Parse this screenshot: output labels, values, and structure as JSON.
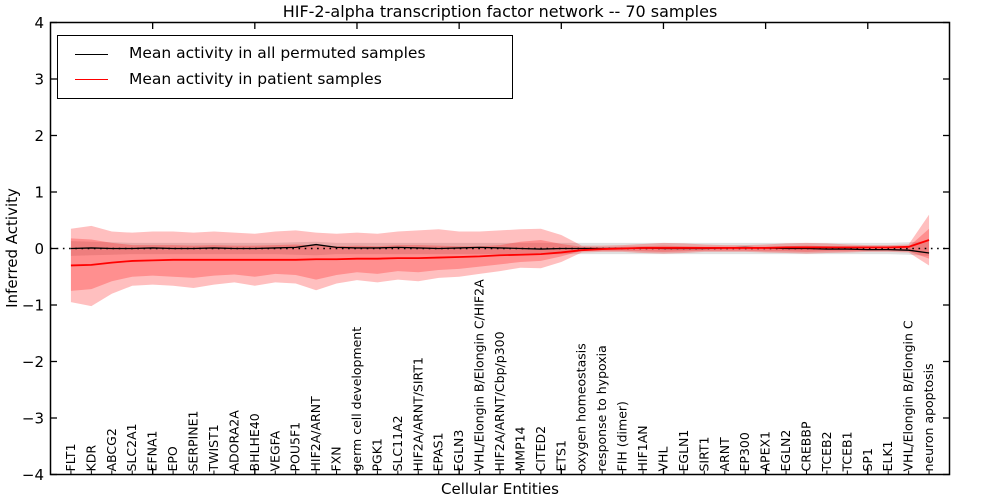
{
  "figure": {
    "title": "HIF-2-alpha transcription factor network -- 70 samples",
    "xlabel": "Cellular Entities",
    "ylabel": "Inferred Activity"
  },
  "legend": {
    "items": [
      {
        "label": "Mean activity in all permuted samples",
        "color": "#000000"
      },
      {
        "label": "Mean activity in patient samples",
        "color": "#ff0000"
      }
    ]
  },
  "chart_data": {
    "type": "line",
    "title": "HIF-2-alpha transcription factor network -- 70 samples",
    "xlabel": "Cellular Entities",
    "ylabel": "Inferred Activity",
    "ylim": [
      -4,
      4
    ],
    "xlim_units": [
      0,
      44
    ],
    "grid": false,
    "legend_position": "upper left",
    "zero_line": {
      "style": "dotted",
      "color": "#000000",
      "y": 0
    },
    "yticks": [
      {
        "v": -4,
        "label": "−4"
      },
      {
        "v": -3,
        "label": "−3"
      },
      {
        "v": -2,
        "label": "−2"
      },
      {
        "v": -1,
        "label": "−1"
      },
      {
        "v": 0,
        "label": "0"
      },
      {
        "v": 1,
        "label": "1"
      },
      {
        "v": 2,
        "label": "2"
      },
      {
        "v": 3,
        "label": "3"
      },
      {
        "v": 4,
        "label": "4"
      }
    ],
    "x_major_tick_units": [
      5,
      10,
      15,
      20,
      25,
      30,
      35,
      40
    ],
    "categories": [
      "FLT1",
      "KDR",
      "ABCG2",
      "SLC2A1",
      "EFNA1",
      "EPO",
      "SERPINE1",
      "TWIST1",
      "ADORA2A",
      "BHLHE40",
      "VEGFA",
      "POU5F1",
      "HIF2A/ARNT",
      "FXN",
      "germ cell development",
      "PGK1",
      "SLC11A2",
      "HIF2A/ARNT/SIRT1",
      "EPAS1",
      "EGLN3",
      "VHL/Elongin B/Elongin C/HIF2A",
      "HIF2A/ARNT/Cbp/p300",
      "MMP14",
      "CITED2",
      "ETS1",
      "oxygen homeostasis",
      "response to hypoxia",
      "FIH (dimer)",
      "HIF1AN",
      "VHL",
      "EGLN1",
      "SIRT1",
      "ARNT",
      "EP300",
      "APEX1",
      "EGLN2",
      "CREBBP",
      "TCEB2",
      "TCEB1",
      "SP1",
      "ELK1",
      "VHL/Elongin B/Elongin C",
      "neuron apoptosis"
    ],
    "series": [
      {
        "name": "Mean activity in all permuted samples",
        "color": "#000000",
        "width": 1.3,
        "values": [
          0.0,
          0.01,
          0.0,
          0.0,
          0.01,
          0.0,
          0.0,
          0.01,
          0.0,
          0.0,
          0.01,
          0.02,
          0.07,
          0.02,
          0.01,
          0.01,
          0.02,
          0.01,
          0.0,
          0.01,
          0.02,
          0.01,
          0.0,
          -0.01,
          0.0,
          0.0,
          0.0,
          0.0,
          0.01,
          0.0,
          0.0,
          0.0,
          0.01,
          0.02,
          0.01,
          0.0,
          0.0,
          -0.01,
          -0.01,
          -0.02,
          -0.02,
          -0.03,
          -0.08
        ]
      },
      {
        "name": "Mean activity in patient samples",
        "color": "#ff0000",
        "width": 1.8,
        "values": [
          -0.3,
          -0.29,
          -0.25,
          -0.22,
          -0.21,
          -0.2,
          -0.2,
          -0.2,
          -0.2,
          -0.2,
          -0.2,
          -0.2,
          -0.19,
          -0.19,
          -0.18,
          -0.18,
          -0.17,
          -0.17,
          -0.16,
          -0.15,
          -0.14,
          -0.12,
          -0.11,
          -0.1,
          -0.07,
          -0.03,
          -0.01,
          0.0,
          0.01,
          0.01,
          0.01,
          0.01,
          0.01,
          0.01,
          0.01,
          0.02,
          0.02,
          0.02,
          0.02,
          0.02,
          0.02,
          0.03,
          0.15
        ]
      }
    ],
    "bands": [
      {
        "name": "permuted-std-band",
        "color": "#999999",
        "opacity": 0.3,
        "top": [
          0.13,
          0.12,
          0.11,
          0.1,
          0.1,
          0.1,
          0.1,
          0.1,
          0.1,
          0.1,
          0.1,
          0.11,
          0.12,
          0.1,
          0.1,
          0.1,
          0.1,
          0.1,
          0.1,
          0.1,
          0.1,
          0.1,
          0.1,
          0.1,
          0.1,
          0.1,
          0.1,
          0.1,
          0.1,
          0.1,
          0.1,
          0.1,
          0.1,
          0.1,
          0.1,
          0.1,
          0.1,
          0.1,
          0.1,
          0.1,
          0.1,
          0.11,
          0.13
        ],
        "bottom": [
          -0.13,
          -0.12,
          -0.11,
          -0.1,
          -0.1,
          -0.1,
          -0.1,
          -0.1,
          -0.1,
          -0.1,
          -0.1,
          -0.11,
          -0.12,
          -0.1,
          -0.1,
          -0.1,
          -0.1,
          -0.1,
          -0.1,
          -0.1,
          -0.1,
          -0.1,
          -0.1,
          -0.1,
          -0.1,
          -0.1,
          -0.1,
          -0.1,
          -0.1,
          -0.1,
          -0.1,
          -0.1,
          -0.1,
          -0.1,
          -0.1,
          -0.1,
          -0.1,
          -0.1,
          -0.1,
          -0.1,
          -0.1,
          -0.11,
          -0.13
        ]
      },
      {
        "name": "patient-outer-band",
        "color": "#ff0000",
        "opacity": 0.25,
        "top": [
          0.35,
          0.4,
          0.3,
          0.28,
          0.3,
          0.3,
          0.28,
          0.3,
          0.28,
          0.26,
          0.3,
          0.32,
          0.28,
          0.26,
          0.28,
          0.26,
          0.3,
          0.32,
          0.34,
          0.3,
          0.3,
          0.32,
          0.34,
          0.35,
          0.24,
          0.05,
          0.05,
          0.06,
          0.08,
          0.1,
          0.09,
          0.07,
          0.06,
          0.06,
          0.07,
          0.09,
          0.1,
          0.09,
          0.07,
          0.06,
          0.06,
          0.07,
          0.6
        ],
        "bottom": [
          -0.95,
          -1.02,
          -0.8,
          -0.66,
          -0.64,
          -0.66,
          -0.7,
          -0.64,
          -0.6,
          -0.66,
          -0.6,
          -0.62,
          -0.74,
          -0.62,
          -0.56,
          -0.6,
          -0.55,
          -0.58,
          -0.52,
          -0.5,
          -0.45,
          -0.4,
          -0.34,
          -0.35,
          -0.24,
          -0.07,
          -0.06,
          -0.06,
          -0.08,
          -0.09,
          -0.08,
          -0.06,
          -0.06,
          -0.06,
          -0.07,
          -0.08,
          -0.09,
          -0.08,
          -0.07,
          -0.06,
          -0.06,
          -0.07,
          -0.3
        ]
      },
      {
        "name": "patient-inner-band",
        "color": "#ff0000",
        "opacity": 0.25,
        "top": [
          0.18,
          0.16,
          0.1,
          0.06,
          0.06,
          0.06,
          0.05,
          0.06,
          0.05,
          0.05,
          0.06,
          0.07,
          0.05,
          0.04,
          0.05,
          0.04,
          0.06,
          0.06,
          0.05,
          0.04,
          0.04,
          0.06,
          0.12,
          0.15,
          0.08,
          0.03,
          0.02,
          0.03,
          0.04,
          0.05,
          0.04,
          0.03,
          0.03,
          0.03,
          0.03,
          0.04,
          0.05,
          0.04,
          0.03,
          0.03,
          0.03,
          0.03,
          0.35
        ],
        "bottom": [
          -0.75,
          -0.72,
          -0.58,
          -0.5,
          -0.48,
          -0.5,
          -0.52,
          -0.48,
          -0.46,
          -0.5,
          -0.45,
          -0.47,
          -0.55,
          -0.47,
          -0.42,
          -0.45,
          -0.4,
          -0.42,
          -0.38,
          -0.36,
          -0.32,
          -0.28,
          -0.24,
          -0.22,
          -0.14,
          -0.04,
          -0.04,
          -0.04,
          -0.05,
          -0.06,
          -0.05,
          -0.04,
          -0.04,
          -0.04,
          -0.05,
          -0.05,
          -0.06,
          -0.05,
          -0.05,
          -0.04,
          -0.04,
          -0.05,
          -0.18
        ]
      }
    ]
  }
}
